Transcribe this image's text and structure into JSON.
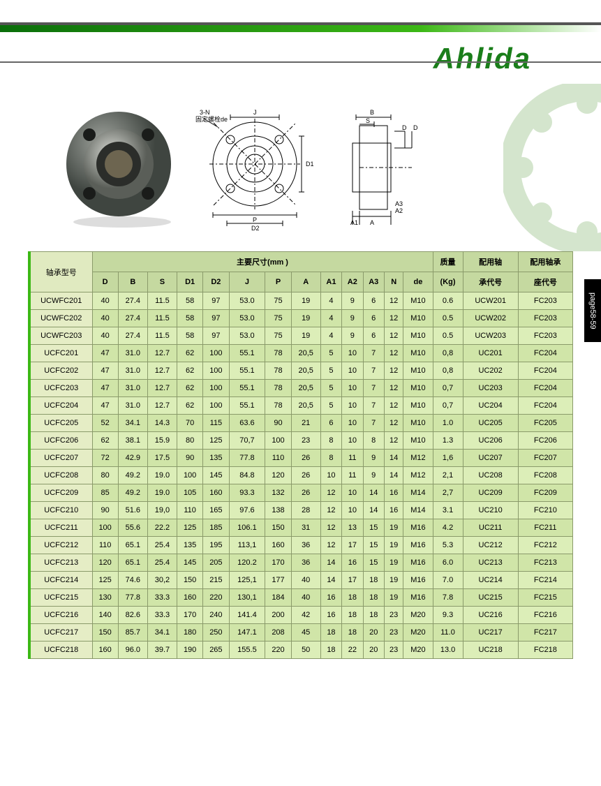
{
  "brand": "Ahlida",
  "page_tab": "page58-59",
  "diagram_labels": {
    "n3": "3-N",
    "fix_de": "固定螺栓de",
    "J": "J",
    "D1": "D1",
    "P": "P",
    "D2": "D2",
    "B": "B",
    "S": "S",
    "D_side": "D",
    "D_side2": "D",
    "A1": "A1",
    "A": "A",
    "A2": "A2",
    "A3": "A3"
  },
  "headers": {
    "model": "轴承型号",
    "dims_group": "主要尺寸(mm )",
    "weight": "质量",
    "weight_unit": "(Kg)",
    "bearing": "配用轴",
    "bearing2": "承代号",
    "housing": "配用轴承",
    "housing2": "座代号",
    "cols": [
      "D",
      "B",
      "S",
      "D1",
      "D2",
      "J",
      "P",
      "A",
      "A1",
      "A2",
      "A3",
      "N",
      "de"
    ]
  },
  "colors": {
    "header_bg": "#c5d9a0",
    "row_bg": "#dceeb8",
    "row_alt_bg": "#d0e5a8",
    "model_bg": "#e5edc5",
    "border": "#8a9a6a",
    "accent_green": "#3cb815",
    "logo_green": "#1a7e1a"
  },
  "rows": [
    {
      "m": "UCWFC201",
      "D": "40",
      "B": "27.4",
      "S": "11.5",
      "D1": "58",
      "D2": "97",
      "J": "53.0",
      "P": "75",
      "A": "19",
      "A1": "4",
      "A2": "9",
      "A3": "6",
      "N": "12",
      "de": "M10",
      "Kg": "0.6",
      "br": "UCW201",
      "hs": "FC203"
    },
    {
      "m": "UCWFC202",
      "D": "40",
      "B": "27.4",
      "S": "11.5",
      "D1": "58",
      "D2": "97",
      "J": "53.0",
      "P": "75",
      "A": "19",
      "A1": "4",
      "A2": "9",
      "A3": "6",
      "N": "12",
      "de": "M10",
      "Kg": "0.5",
      "br": "UCW202",
      "hs": "FC203"
    },
    {
      "m": "UCWFC203",
      "D": "40",
      "B": "27.4",
      "S": "11.5",
      "D1": "58",
      "D2": "97",
      "J": "53.0",
      "P": "75",
      "A": "19",
      "A1": "4",
      "A2": "9",
      "A3": "6",
      "N": "12",
      "de": "M10",
      "Kg": "0.5",
      "br": "UCW203",
      "hs": "FC203"
    },
    {
      "m": "UCFC201",
      "D": "47",
      "B": "31.0",
      "S": "12.7",
      "D1": "62",
      "D2": "100",
      "J": "55.1",
      "P": "78",
      "A": "20,5",
      "A1": "5",
      "A2": "10",
      "A3": "7",
      "N": "12",
      "de": "M10",
      "Kg": "0,8",
      "br": "UC201",
      "hs": "FC204"
    },
    {
      "m": "UCFC202",
      "D": "47",
      "B": "31.0",
      "S": "12.7",
      "D1": "62",
      "D2": "100",
      "J": "55.1",
      "P": "78",
      "A": "20,5",
      "A1": "5",
      "A2": "10",
      "A3": "7",
      "N": "12",
      "de": "M10",
      "Kg": "0,8",
      "br": "UC202",
      "hs": "FC204"
    },
    {
      "m": "UCFC203",
      "D": "47",
      "B": "31.0",
      "S": "12.7",
      "D1": "62",
      "D2": "100",
      "J": "55.1",
      "P": "78",
      "A": "20,5",
      "A1": "5",
      "A2": "10",
      "A3": "7",
      "N": "12",
      "de": "M10",
      "Kg": "0,7",
      "br": "UC203",
      "hs": "FC204"
    },
    {
      "m": "UCFC204",
      "D": "47",
      "B": "31.0",
      "S": "12.7",
      "D1": "62",
      "D2": "100",
      "J": "55.1",
      "P": "78",
      "A": "20,5",
      "A1": "5",
      "A2": "10",
      "A3": "7",
      "N": "12",
      "de": "M10",
      "Kg": "0,7",
      "br": "UC204",
      "hs": "FC204"
    },
    {
      "m": "UCFC205",
      "D": "52",
      "B": "34.1",
      "S": "14.3",
      "D1": "70",
      "D2": "115",
      "J": "63.6",
      "P": "90",
      "A": "21",
      "A1": "6",
      "A2": "10",
      "A3": "7",
      "N": "12",
      "de": "M10",
      "Kg": "1.0",
      "br": "UC205",
      "hs": "FC205"
    },
    {
      "m": "UCFC206",
      "D": "62",
      "B": "38.1",
      "S": "15.9",
      "D1": "80",
      "D2": "125",
      "J": "70,7",
      "P": "100",
      "A": "23",
      "A1": "8",
      "A2": "10",
      "A3": "8",
      "N": "12",
      "de": "M10",
      "Kg": "1.3",
      "br": "UC206",
      "hs": "FC206"
    },
    {
      "m": "UCFC207",
      "D": "72",
      "B": "42.9",
      "S": "17.5",
      "D1": "90",
      "D2": "135",
      "J": "77.8",
      "P": "110",
      "A": "26",
      "A1": "8",
      "A2": "11",
      "A3": "9",
      "N": "14",
      "de": "M12",
      "Kg": "1,6",
      "br": "UC207",
      "hs": "FC207"
    },
    {
      "m": "UCFC208",
      "D": "80",
      "B": "49.2",
      "S": "19.0",
      "D1": "100",
      "D2": "145",
      "J": "84.8",
      "P": "120",
      "A": "26",
      "A1": "10",
      "A2": "11",
      "A3": "9",
      "N": "14",
      "de": "M12",
      "Kg": "2,1",
      "br": "UC208",
      "hs": "FC208"
    },
    {
      "m": "UCFC209",
      "D": "85",
      "B": "49.2",
      "S": "19.0",
      "D1": "105",
      "D2": "160",
      "J": "93.3",
      "P": "132",
      "A": "26",
      "A1": "12",
      "A2": "10",
      "A3": "14",
      "N": "16",
      "de": "M14",
      "Kg": "2,7",
      "br": "UC209",
      "hs": "FC209"
    },
    {
      "m": "UCFC210",
      "D": "90",
      "B": "51.6",
      "S": "19,0",
      "D1": "110",
      "D2": "165",
      "J": "97.6",
      "P": "138",
      "A": "28",
      "A1": "12",
      "A2": "10",
      "A3": "14",
      "N": "16",
      "de": "M14",
      "Kg": "3.1",
      "br": "UC210",
      "hs": "FC210"
    },
    {
      "m": "UCFC211",
      "D": "100",
      "B": "55.6",
      "S": "22.2",
      "D1": "125",
      "D2": "185",
      "J": "106.1",
      "P": "150",
      "A": "31",
      "A1": "12",
      "A2": "13",
      "A3": "15",
      "N": "19",
      "de": "M16",
      "Kg": "4.2",
      "br": "UC211",
      "hs": "FC211"
    },
    {
      "m": "UCFC212",
      "D": "110",
      "B": "65.1",
      "S": "25.4",
      "D1": "135",
      "D2": "195",
      "J": "113,1",
      "P": "160",
      "A": "36",
      "A1": "12",
      "A2": "17",
      "A3": "15",
      "N": "19",
      "de": "M16",
      "Kg": "5.3",
      "br": "UC212",
      "hs": "FC212"
    },
    {
      "m": "UCFC213",
      "D": "120",
      "B": "65.1",
      "S": "25.4",
      "D1": "145",
      "D2": "205",
      "J": "120.2",
      "P": "170",
      "A": "36",
      "A1": "14",
      "A2": "16",
      "A3": "15",
      "N": "19",
      "de": "M16",
      "Kg": "6.0",
      "br": "UC213",
      "hs": "FC213"
    },
    {
      "m": "UCFC214",
      "D": "125",
      "B": "74.6",
      "S": "30,2",
      "D1": "150",
      "D2": "215",
      "J": "125,1",
      "P": "177",
      "A": "40",
      "A1": "14",
      "A2": "17",
      "A3": "18",
      "N": "19",
      "de": "M16",
      "Kg": "7.0",
      "br": "UC214",
      "hs": "FC214"
    },
    {
      "m": "UCFC215",
      "D": "130",
      "B": "77.8",
      "S": "33.3",
      "D1": "160",
      "D2": "220",
      "J": "130,1",
      "P": "184",
      "A": "40",
      "A1": "16",
      "A2": "18",
      "A3": "18",
      "N": "19",
      "de": "M16",
      "Kg": "7.8",
      "br": "UC215",
      "hs": "FC215"
    },
    {
      "m": "UCFC216",
      "D": "140",
      "B": "82.6",
      "S": "33.3",
      "D1": "170",
      "D2": "240",
      "J": "141.4",
      "P": "200",
      "A": "42",
      "A1": "16",
      "A2": "18",
      "A3": "18",
      "N": "23",
      "de": "M20",
      "Kg": "9.3",
      "br": "UC216",
      "hs": "FC216"
    },
    {
      "m": "UCFC217",
      "D": "150",
      "B": "85.7",
      "S": "34.1",
      "D1": "180",
      "D2": "250",
      "J": "147.1",
      "P": "208",
      "A": "45",
      "A1": "18",
      "A2": "18",
      "A3": "20",
      "N": "23",
      "de": "M20",
      "Kg": "11.0",
      "br": "UC217",
      "hs": "FC217"
    },
    {
      "m": "UCFC218",
      "D": "160",
      "B": "96.0",
      "S": "39.7",
      "D1": "190",
      "D2": "265",
      "J": "155.5",
      "P": "220",
      "A": "50",
      "A1": "18",
      "A2": "22",
      "A3": "20",
      "N": "23",
      "de": "M20",
      "Kg": "13.0",
      "br": "UC218",
      "hs": "FC218"
    }
  ]
}
